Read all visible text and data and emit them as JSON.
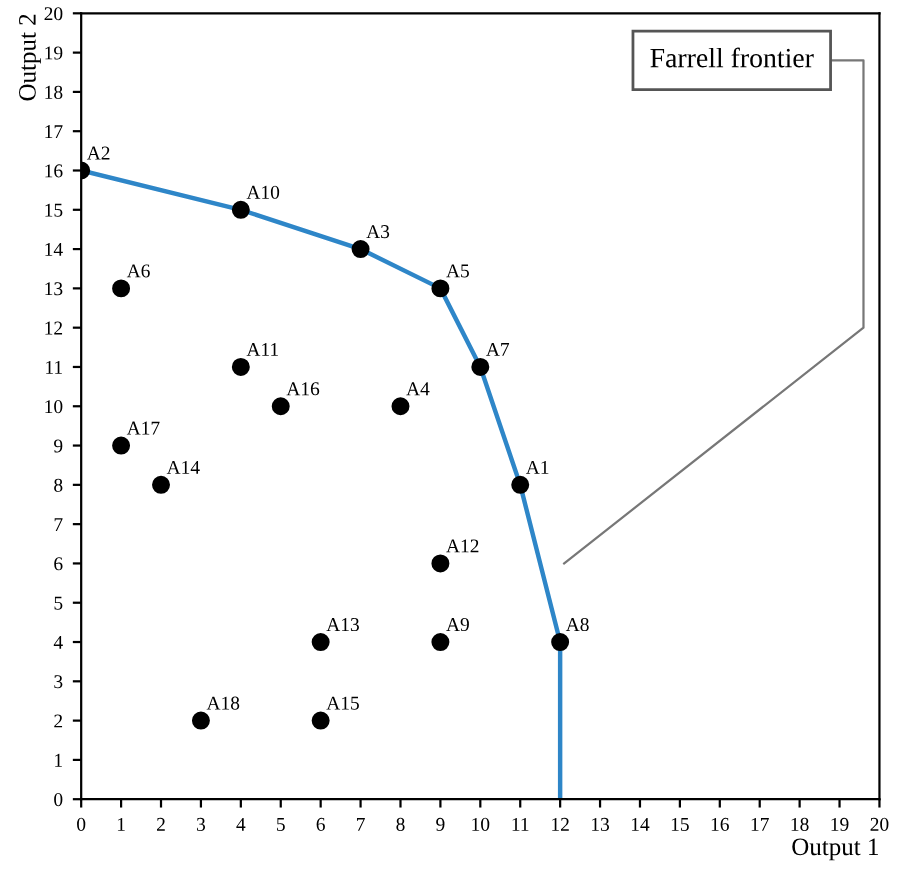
{
  "chart_data": {
    "type": "scatter",
    "xlabel": "Output 1",
    "ylabel": "Output 2",
    "xlim": [
      0,
      20
    ],
    "ylim": [
      0,
      20
    ],
    "xticks": [
      0,
      1,
      2,
      3,
      4,
      5,
      6,
      7,
      8,
      9,
      10,
      11,
      12,
      13,
      14,
      15,
      16,
      17,
      18,
      19,
      20
    ],
    "yticks": [
      0,
      1,
      2,
      3,
      4,
      5,
      6,
      7,
      8,
      9,
      10,
      11,
      12,
      13,
      14,
      15,
      16,
      17,
      18,
      19,
      20
    ],
    "grid": false,
    "legend": false,
    "series": [
      {
        "type": "line",
        "color": "#2e86c8",
        "marker": "none",
        "line_style": "solid",
        "x": [
          0,
          4,
          7,
          9,
          10,
          11,
          12,
          12
        ],
        "values": [
          16,
          15,
          14,
          13,
          11,
          8,
          4,
          0
        ]
      },
      {
        "color": "#000000",
        "marker": "circle",
        "x": [
          11,
          0,
          7,
          8,
          9,
          10,
          12,
          9,
          4,
          4,
          9,
          6,
          2,
          6,
          5,
          1,
          3,
          1
        ],
        "values": [
          8,
          16,
          14,
          10,
          13,
          11,
          4,
          4,
          15,
          11,
          6,
          4,
          8,
          2,
          10,
          9,
          2,
          13
        ]
      }
    ],
    "annotations": [
      {
        "text": "A1",
        "x": 11,
        "y": 8
      },
      {
        "text": "A2",
        "x": 0,
        "y": 16
      },
      {
        "text": "A3",
        "x": 7,
        "y": 14
      },
      {
        "text": "A4",
        "x": 8,
        "y": 10
      },
      {
        "text": "A5",
        "x": 9,
        "y": 13
      },
      {
        "text": "A7",
        "x": 10,
        "y": 11
      },
      {
        "text": "A8",
        "x": 12,
        "y": 4
      },
      {
        "text": "A9",
        "x": 9,
        "y": 4
      },
      {
        "text": "A10",
        "x": 4,
        "y": 15
      },
      {
        "text": "A11",
        "x": 4,
        "y": 11
      },
      {
        "text": "A12",
        "x": 9,
        "y": 6
      },
      {
        "text": "A13",
        "x": 6,
        "y": 4
      },
      {
        "text": "A14",
        "x": 2,
        "y": 8
      },
      {
        "text": "A15",
        "x": 6,
        "y": 2
      },
      {
        "text": "A16",
        "x": 5,
        "y": 10
      },
      {
        "text": "A17",
        "x": 1,
        "y": 9
      },
      {
        "text": "A18",
        "x": 3,
        "y": 2
      },
      {
        "text": "A6",
        "x": 1,
        "y": 13
      },
      "Farrell frontier"
    ]
  }
}
